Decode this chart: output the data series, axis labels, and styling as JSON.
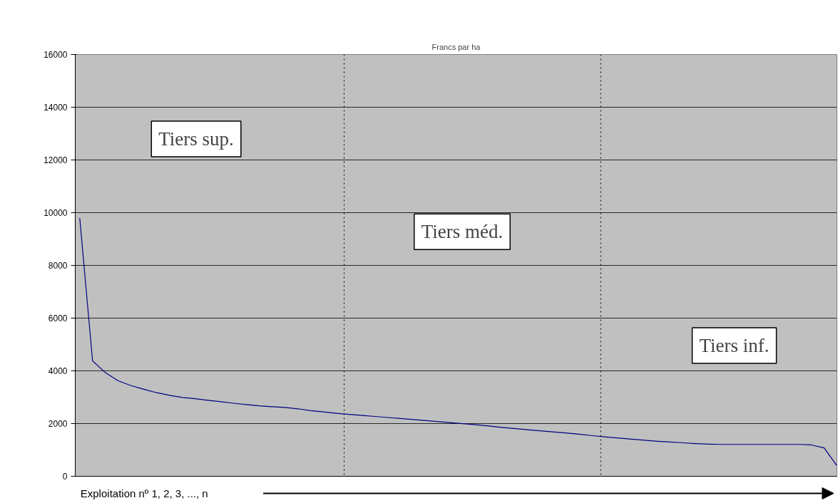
{
  "chart_data": {
    "type": "line",
    "title": "Francs par ha",
    "xlabel": "Exploitation nº 1, 2, 3, ..., n",
    "categories": [
      null,
      null,
      null,
      null,
      null,
      null,
      null,
      null,
      null,
      null,
      null,
      null,
      null,
      null,
      null,
      null,
      null,
      null,
      null,
      null,
      null,
      null,
      null,
      null,
      null,
      null,
      null,
      null,
      null,
      null,
      null,
      null,
      null,
      null,
      null,
      null,
      null,
      null,
      null,
      null,
      null,
      null,
      null,
      null,
      null,
      null,
      null,
      null,
      null,
      null,
      null,
      null,
      null,
      null,
      null,
      null,
      null,
      null,
      null,
      null
    ],
    "series": [
      {
        "color": "#000080",
        "values": [
          9800,
          4380,
          3930,
          3620,
          3440,
          3300,
          3170,
          3070,
          2990,
          2940,
          2880,
          2830,
          2770,
          2720,
          2670,
          2640,
          2610,
          2560,
          2490,
          2440,
          2390,
          2350,
          2310,
          2270,
          2230,
          2190,
          2150,
          2110,
          2070,
          2030,
          1990,
          1950,
          1900,
          1850,
          1810,
          1760,
          1720,
          1680,
          1640,
          1590,
          1540,
          1490,
          1450,
          1410,
          1370,
          1330,
          1300,
          1270,
          1240,
          1220,
          1210,
          1210,
          1210,
          1210,
          1210,
          1210,
          1210,
          1190,
          1080,
          400
        ]
      }
    ],
    "ylim": [
      0,
      16000
    ],
    "yticks": [
      0,
      2000,
      4000,
      6000,
      8000,
      10000,
      12000,
      14000,
      16000
    ],
    "grid": "y",
    "tick_labels": "y",
    "marker": "none",
    "line_style": "solid",
    "annotations": [
      "Tiers sup.",
      "Tiers méd.",
      "Tiers inf."
    ]
  }
}
